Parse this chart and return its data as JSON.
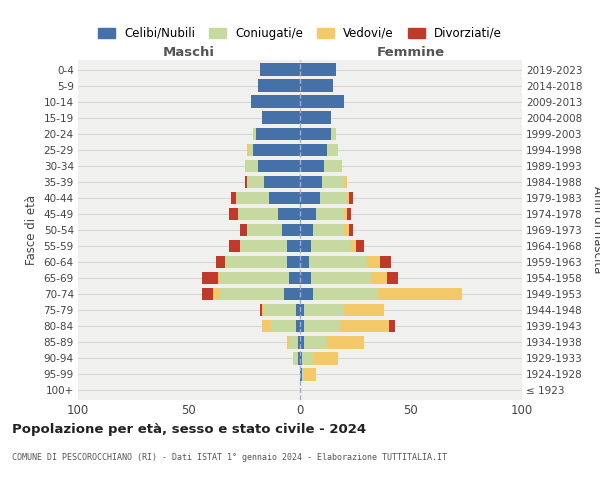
{
  "age_groups": [
    "100+",
    "95-99",
    "90-94",
    "85-89",
    "80-84",
    "75-79",
    "70-74",
    "65-69",
    "60-64",
    "55-59",
    "50-54",
    "45-49",
    "40-44",
    "35-39",
    "30-34",
    "25-29",
    "20-24",
    "15-19",
    "10-14",
    "5-9",
    "0-4"
  ],
  "birth_years": [
    "≤ 1923",
    "1924-1928",
    "1929-1933",
    "1934-1938",
    "1939-1943",
    "1944-1948",
    "1949-1953",
    "1954-1958",
    "1959-1963",
    "1964-1968",
    "1969-1973",
    "1974-1978",
    "1979-1983",
    "1984-1988",
    "1989-1993",
    "1994-1998",
    "1999-2003",
    "2004-2008",
    "2009-2013",
    "2014-2018",
    "2019-2023"
  ],
  "males": {
    "celibi": [
      0,
      0,
      1,
      1,
      2,
      2,
      7,
      5,
      6,
      6,
      8,
      10,
      14,
      16,
      19,
      21,
      20,
      17,
      22,
      19,
      18
    ],
    "coniugati": [
      0,
      0,
      2,
      4,
      11,
      14,
      29,
      31,
      28,
      21,
      16,
      18,
      15,
      8,
      6,
      2,
      1,
      0,
      0,
      0,
      0
    ],
    "vedovi": [
      0,
      0,
      0,
      1,
      4,
      1,
      3,
      1,
      0,
      0,
      0,
      0,
      0,
      0,
      0,
      1,
      0,
      0,
      0,
      0,
      0
    ],
    "divorziati": [
      0,
      0,
      0,
      0,
      0,
      1,
      5,
      7,
      4,
      5,
      3,
      4,
      2,
      1,
      0,
      0,
      0,
      0,
      0,
      0,
      0
    ]
  },
  "females": {
    "nubili": [
      0,
      1,
      1,
      2,
      2,
      2,
      6,
      5,
      4,
      5,
      6,
      7,
      9,
      10,
      11,
      12,
      14,
      14,
      20,
      15,
      16
    ],
    "coniugate": [
      0,
      1,
      5,
      10,
      16,
      18,
      29,
      27,
      26,
      18,
      14,
      13,
      12,
      10,
      8,
      5,
      2,
      0,
      0,
      0,
      0
    ],
    "vedove": [
      0,
      5,
      11,
      17,
      22,
      18,
      38,
      7,
      6,
      2,
      2,
      1,
      1,
      1,
      0,
      0,
      0,
      0,
      0,
      0,
      0
    ],
    "divorziate": [
      0,
      0,
      0,
      0,
      3,
      0,
      0,
      5,
      5,
      4,
      2,
      2,
      2,
      0,
      0,
      0,
      0,
      0,
      0,
      0,
      0
    ]
  },
  "colors": {
    "celibi": "#4472a8",
    "coniugati": "#c5d9a0",
    "vedovi": "#f4c96a",
    "divorziati": "#c0392b"
  },
  "legend_labels": [
    "Celibi/Nubili",
    "Coniugati/e",
    "Vedovi/e",
    "Divorziati/e"
  ],
  "xlim": 100,
  "title": "Popolazione per età, sesso e stato civile - 2024",
  "subtitle": "COMUNE DI PESCOROCCHIANO (RI) - Dati ISTAT 1° gennaio 2024 - Elaborazione TUTTITALIA.IT",
  "ylabel_left": "Fasce di età",
  "ylabel_right": "Anni di nascita",
  "xlabel_left": "Maschi",
  "xlabel_right": "Femmine",
  "bg_color": "#f0f0ee"
}
